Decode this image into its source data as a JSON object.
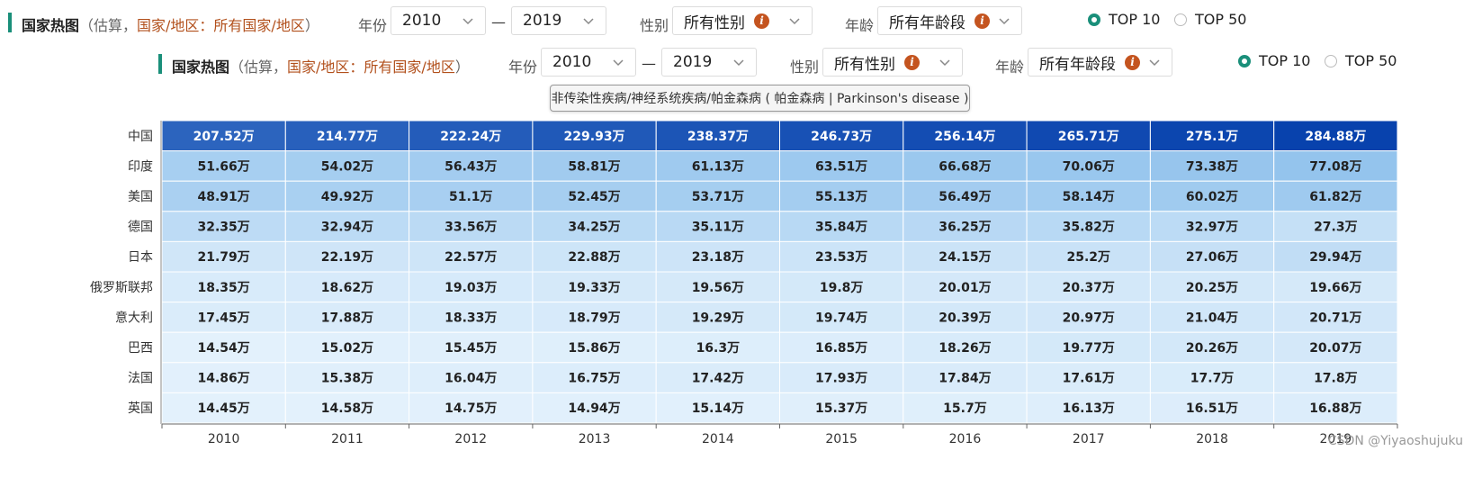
{
  "toolbar": {
    "title": "国家热图",
    "paren_open": "（估算，",
    "scope": "国家/地区：所有国家/地区",
    "paren_close": "）",
    "year_label": "年份",
    "year_from": "2010",
    "year_to": "2019",
    "dash": "—",
    "sex_label": "性别",
    "sex_value": "所有性别",
    "age_label": "年龄",
    "age_value": "所有年龄段",
    "info_glyph": "i",
    "top10": "TOP 10",
    "top50": "TOP 50",
    "selected_top": "TOP 10"
  },
  "tooltip": "非传染性疾病/神经系统疾病/帕金森病 ( 帕金森病 | Parkinson's disease )",
  "watermark": "CSDN @Yiyaoshujuku",
  "colors": {
    "accent": "#1a8f7a",
    "highlight": "#b2501c",
    "info": "#c4541f"
  },
  "chart_data": {
    "type": "heatmap",
    "unit": "万",
    "x": [
      "2010",
      "2011",
      "2012",
      "2013",
      "2014",
      "2015",
      "2016",
      "2017",
      "2018",
      "2019"
    ],
    "y": [
      "中国",
      "印度",
      "美国",
      "德国",
      "日本",
      "俄罗斯联邦",
      "意大利",
      "巴西",
      "法国",
      "英国"
    ],
    "values": [
      [
        207.52,
        214.77,
        222.24,
        229.93,
        238.37,
        246.73,
        256.14,
        265.71,
        275.1,
        284.88
      ],
      [
        51.66,
        54.02,
        56.43,
        58.81,
        61.13,
        63.51,
        66.68,
        70.06,
        73.38,
        77.08
      ],
      [
        48.91,
        49.92,
        51.1,
        52.45,
        53.71,
        55.13,
        56.49,
        58.14,
        60.02,
        61.82
      ],
      [
        32.35,
        32.94,
        33.56,
        34.25,
        35.11,
        35.84,
        36.25,
        35.82,
        32.97,
        27.3
      ],
      [
        21.79,
        22.19,
        22.57,
        22.88,
        23.18,
        23.53,
        24.15,
        25.2,
        27.06,
        29.94
      ],
      [
        18.35,
        18.62,
        19.03,
        19.33,
        19.56,
        19.8,
        20.01,
        20.37,
        20.25,
        19.66
      ],
      [
        17.45,
        17.88,
        18.33,
        18.79,
        19.29,
        19.74,
        20.39,
        20.97,
        21.04,
        20.71
      ],
      [
        14.54,
        15.02,
        15.45,
        15.86,
        16.3,
        16.85,
        18.26,
        19.77,
        20.26,
        20.07
      ],
      [
        14.86,
        15.38,
        16.04,
        16.75,
        17.42,
        17.93,
        17.84,
        17.61,
        17.7,
        17.8
      ],
      [
        14.45,
        14.58,
        14.75,
        14.94,
        15.14,
        15.37,
        15.7,
        16.13,
        16.51,
        16.88
      ]
    ],
    "labels": [
      [
        "207.52万",
        "214.77万",
        "222.24万",
        "229.93万",
        "238.37万",
        "246.73万",
        "256.14万",
        "265.71万",
        "275.1万",
        "284.88万"
      ],
      [
        "51.66万",
        "54.02万",
        "56.43万",
        "58.81万",
        "61.13万",
        "63.51万",
        "66.68万",
        "70.06万",
        "73.38万",
        "77.08万"
      ],
      [
        "48.91万",
        "49.92万",
        "51.1万",
        "52.45万",
        "53.71万",
        "55.13万",
        "56.49万",
        "58.14万",
        "60.02万",
        "61.82万"
      ],
      [
        "32.35万",
        "32.94万",
        "33.56万",
        "34.25万",
        "35.11万",
        "35.84万",
        "36.25万",
        "35.82万",
        "32.97万",
        "27.3万"
      ],
      [
        "21.79万",
        "22.19万",
        "22.57万",
        "22.88万",
        "23.18万",
        "23.53万",
        "24.15万",
        "25.2万",
        "27.06万",
        "29.94万"
      ],
      [
        "18.35万",
        "18.62万",
        "19.03万",
        "19.33万",
        "19.56万",
        "19.8万",
        "20.01万",
        "20.37万",
        "20.25万",
        "19.66万"
      ],
      [
        "17.45万",
        "17.88万",
        "18.33万",
        "18.79万",
        "19.29万",
        "19.74万",
        "20.39万",
        "20.97万",
        "21.04万",
        "20.71万"
      ],
      [
        "14.54万",
        "15.02万",
        "15.45万",
        "15.86万",
        "16.3万",
        "16.85万",
        "18.26万",
        "19.77万",
        "20.26万",
        "20.07万"
      ],
      [
        "14.86万",
        "15.38万",
        "16.04万",
        "16.75万",
        "17.42万",
        "17.93万",
        "17.84万",
        "17.61万",
        "17.7万",
        "17.8万"
      ],
      [
        "14.45万",
        "14.58万",
        "14.75万",
        "14.94万",
        "15.14万",
        "15.37万",
        "15.7万",
        "16.13万",
        "16.51万",
        "16.88万"
      ]
    ],
    "color_scale": {
      "low": "#e3f1fc",
      "mid": "#8fc1ec",
      "high": "#0842ad"
    }
  }
}
